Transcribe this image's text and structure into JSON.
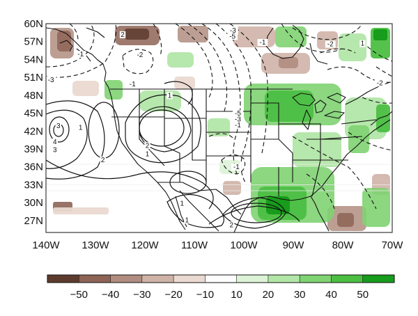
{
  "map": {
    "lat_labels": [
      "60N",
      "57N",
      "54N",
      "51N",
      "48N",
      "45N",
      "42N",
      "39N",
      "36N",
      "33N",
      "30N",
      "27N"
    ],
    "lon_labels": [
      "140W",
      "130W",
      "120W",
      "110W",
      "100W",
      "90W",
      "80W",
      "70W"
    ],
    "lat_range": [
      25,
      60
    ],
    "lon_range": [
      -140,
      -70
    ],
    "contour_labels": [
      {
        "text": "2",
        "lon": -124.5,
        "lat": 57.8
      },
      {
        "text": "-1",
        "lon": -133,
        "lat": 54.5
      },
      {
        "text": "-2",
        "lon": -121,
        "lat": 54.4
      },
      {
        "text": "-3",
        "lon": -139,
        "lat": 50.2
      },
      {
        "text": "-1",
        "lon": -122.5,
        "lat": 49.5
      },
      {
        "text": "-3",
        "lon": -102.2,
        "lat": 58.5
      },
      {
        "text": "-5",
        "lon": -102.3,
        "lat": 57.5
      },
      {
        "text": "-1",
        "lon": -96.2,
        "lat": 56.5
      },
      {
        "text": "-2",
        "lon": -82.5,
        "lat": 56.2
      },
      {
        "text": "1",
        "lon": -76,
        "lat": 56.3
      },
      {
        "text": "-2",
        "lon": -72.5,
        "lat": 49.7
      },
      {
        "text": "1",
        "lon": -115,
        "lat": 47.6
      },
      {
        "text": "1",
        "lon": -133,
        "lat": 42.2
      },
      {
        "text": "3",
        "lon": -137.5,
        "lat": 42.5
      },
      {
        "text": "4",
        "lon": -138.2,
        "lat": 39.8
      },
      {
        "text": "3",
        "lon": -138.2,
        "lat": 38.5
      },
      {
        "text": "2",
        "lon": -128.5,
        "lat": 36.8
      },
      {
        "text": "2",
        "lon": -119.5,
        "lat": 39.2
      },
      {
        "text": "1",
        "lon": -119.5,
        "lat": 37.8
      },
      {
        "text": "-5",
        "lon": -101.2,
        "lat": 44.6
      },
      {
        "text": "-3",
        "lon": -101.2,
        "lat": 43.6
      },
      {
        "text": "-1",
        "lon": -101.2,
        "lat": 42.6
      },
      {
        "text": "-1",
        "lon": -101.5,
        "lat": 35.6
      },
      {
        "text": "1",
        "lon": -112.5,
        "lat": 29.5
      },
      {
        "text": "1",
        "lon": -111.5,
        "lat": 26.7
      },
      {
        "text": "2",
        "lon": -102.5,
        "lat": 25.9
      }
    ]
  },
  "colorbar": {
    "labels": [
      "−50",
      "−40",
      "−30",
      "−20",
      "−10",
      "10",
      "20",
      "30",
      "40",
      "50"
    ],
    "colors": [
      "#5c3b2e",
      "#8e6456",
      "#b08d80",
      "#cfb3a7",
      "#ead9d1",
      "#fdfdfd",
      "#ddf3d8",
      "#b2e6a8",
      "#7fd372",
      "#4cbf43",
      "#179c1b"
    ]
  },
  "colors": {
    "dry": "#c6a497",
    "dry_strong": "#80584a",
    "wet": "#8ad986",
    "wet_strong": "#34b43c",
    "border": "#111111"
  }
}
